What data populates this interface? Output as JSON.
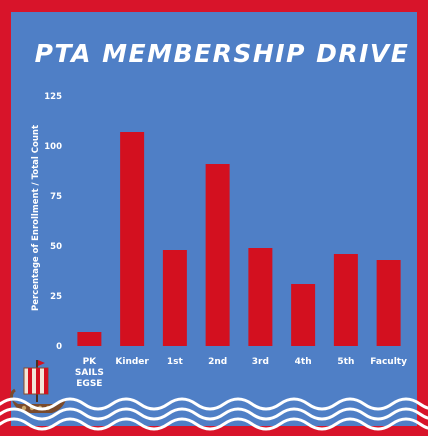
{
  "colors": {
    "frame": "#d8142a",
    "background": "#4f7fc6",
    "bar": "#d3101f",
    "text": "#ffffff",
    "grid": "#6f97d2"
  },
  "icons": [
    "viking-ship-icon",
    "waves-decoration"
  ],
  "chart_data": {
    "type": "bar",
    "title": "PTA MEMBERSHIP DRIVE",
    "ylabel": "Percentage of Enrollment / Total Count",
    "xlabel": "",
    "ylim": [
      0,
      125
    ],
    "yticks": [
      0,
      25,
      50,
      75,
      100,
      125
    ],
    "categories": [
      [
        "PK",
        "SAILS",
        "EGSE"
      ],
      [
        "Kinder"
      ],
      [
        "1st"
      ],
      [
        "2nd"
      ],
      [
        "3rd"
      ],
      [
        "4th"
      ],
      [
        "5th"
      ],
      [
        "Faculty"
      ]
    ],
    "values": [
      7,
      107,
      48,
      91,
      49,
      31,
      46,
      43
    ],
    "grid": false,
    "legend": "none"
  }
}
